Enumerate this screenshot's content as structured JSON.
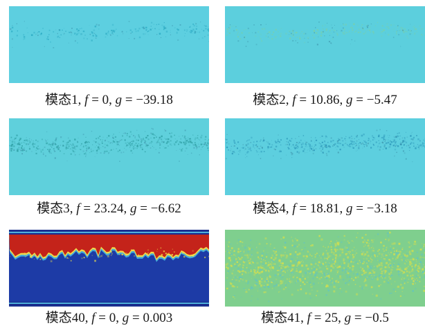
{
  "panels": [
    {
      "mode": "模态1",
      "f_label": "f",
      "f_value": "0",
      "g_label": "g",
      "g_value": "−39.18",
      "base_color": "#5dcfe0",
      "speckle_color": "#2aa9c2"
    },
    {
      "mode": "模态2",
      "f_label": "f",
      "f_value": "10.86",
      "g_label": "g",
      "g_value": "−5.47",
      "base_color": "#5ccfdd",
      "speckle_color": "#7ad0a8"
    },
    {
      "mode": "模态3",
      "f_label": "f",
      "f_value": "23.24",
      "g_label": "g",
      "g_value": "−6.62",
      "base_color": "#5fd0dc",
      "speckle_color": "#2e9fa4"
    },
    {
      "mode": "模态4",
      "f_label": "f",
      "f_value": "18.81",
      "g_label": "g",
      "g_value": "−3.18",
      "base_color": "#5dcfdf",
      "speckle_color": "#2a95b8"
    },
    {
      "mode": "模态40",
      "f_label": "f",
      "f_value": "0",
      "g_label": "g",
      "g_value": "0.003",
      "top_color": "#c4231a",
      "bottom_color": "#1f3fae",
      "edge_color": "#f0d84a"
    },
    {
      "mode": "模态41",
      "f_label": "f",
      "f_value": "25",
      "g_label": "g",
      "g_value": "−0.5",
      "base_color": "#7fcf8e",
      "speckle_color": "#d8e04a"
    }
  ]
}
